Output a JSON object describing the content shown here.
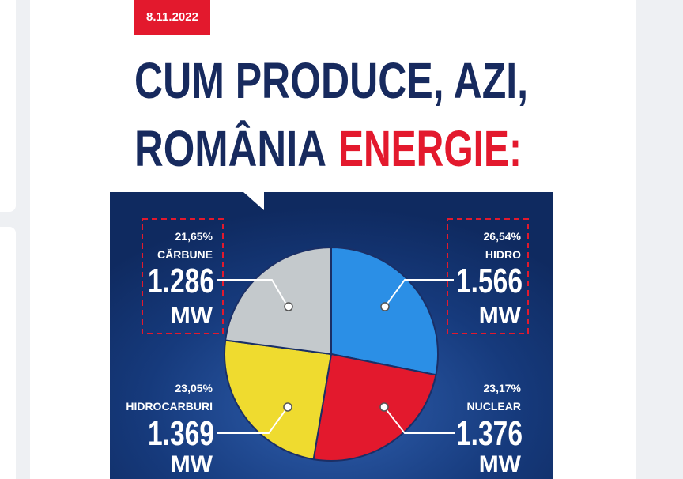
{
  "date": "8.11.2022",
  "chart_data": {
    "type": "pie",
    "title": {
      "lines": [
        "CUM PRODUCE, AZI,",
        "ROMÂNIA",
        "ENERGIE:"
      ]
    },
    "categories": [
      "HIDRO",
      "NUCLEAR",
      "HIDROCARBURI",
      "CĂRBUNE"
    ],
    "values": [
      26.54,
      23.17,
      23.05,
      21.65
    ],
    "value_labels": [
      "26,54%",
      "23,17%",
      "23,05%",
      "21,65%"
    ],
    "power_labels": [
      "1.566",
      "1.376",
      "1.369",
      "1.286"
    ],
    "unit": "MW",
    "colors": [
      "#2b8fe6",
      "#e3192d",
      "#efdb2f",
      "#c4c9cc"
    ]
  }
}
